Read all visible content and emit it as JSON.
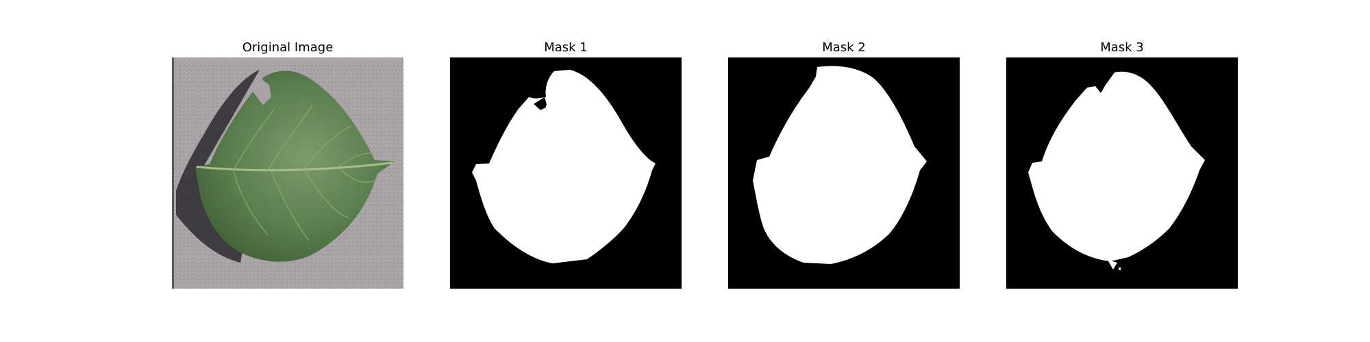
{
  "panels": [
    {
      "title": "Original Image",
      "kind": "photo"
    },
    {
      "title": "Mask 1",
      "kind": "mask"
    },
    {
      "title": "Mask 2",
      "kind": "mask"
    },
    {
      "title": "Mask 3",
      "kind": "mask"
    }
  ],
  "colors": {
    "mask_background": "#000000",
    "mask_foreground": "#ffffff",
    "photo_background": "#a9a2a6",
    "leaf_dark": "#3f5f34",
    "leaf_mid": "#5c8050",
    "leaf_light": "#7d9b6c",
    "shadow": "#2b2a2e",
    "vein": "#a8bd8a"
  }
}
